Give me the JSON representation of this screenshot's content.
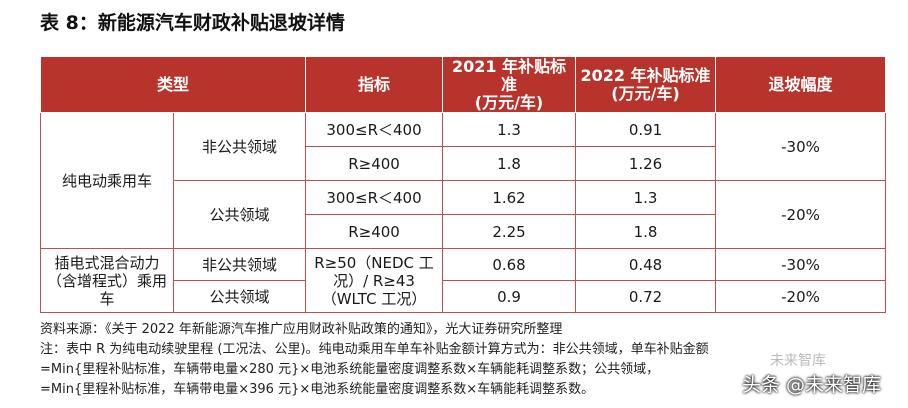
{
  "title": "表 8：新能源汽车财政补贴退坡详情",
  "table": {
    "headers": {
      "type": "类型",
      "indicator": "指标",
      "std2021": "2021 年补贴标准\n(万元/车)",
      "std2022": "2022 年补贴标准\n(万元/车)",
      "decline": "退坡幅度"
    },
    "groups": [
      {
        "category": "纯电动乘用车",
        "subgroups": [
          {
            "sub": "非公共领域",
            "rows": [
              {
                "indicator": "300≤R＜400",
                "v2021": "1.3",
                "v2022": "0.91"
              },
              {
                "indicator": "R≥400",
                "v2021": "1.8",
                "v2022": "1.26"
              }
            ],
            "decline": "-30%"
          },
          {
            "sub": "公共领域",
            "rows": [
              {
                "indicator": "300≤R＜400",
                "v2021": "1.62",
                "v2022": "1.3"
              },
              {
                "indicator": "R≥400",
                "v2021": "2.25",
                "v2022": "1.8"
              }
            ],
            "decline": "-20%"
          }
        ]
      },
      {
        "category": "插电式混合动力（含增程式）乘用车",
        "indicator": "R≥50（NEDC 工况）/ R≥43（WLTC 工况）",
        "subgroups": [
          {
            "sub": "非公共领域",
            "v2021": "0.68",
            "v2022": "0.48",
            "decline": "-30%"
          },
          {
            "sub": "公共领域",
            "v2021": "0.9",
            "v2022": "0.72",
            "decline": "-20%"
          }
        ]
      }
    ]
  },
  "notes": [
    "资料来源：《关于 2022 年新能源汽车推广应用财政补贴政策的通知》，光大证券研究所整理",
    "注：表中 R 为纯电动续驶里程 (工况法、公里)。纯电动乘用车单车补贴金额计算方式为：非公共领域，单车补贴金额",
    "=Min{里程补贴标准，车辆带电量×280 元}×电池系统能量密度调整系数×车辆能耗调整系数；公共领域，",
    "=Min{里程补贴标准，车辆带电量×396 元}×电池系统能量密度调整系数×车辆能耗调整系数。"
  ],
  "watermark": {
    "small": "未来智库",
    "large": "头条 @未来智库"
  }
}
